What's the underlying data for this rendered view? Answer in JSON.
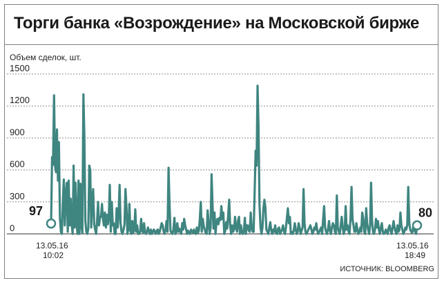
{
  "chart_data": {
    "type": "line",
    "title": "Торги банка «Возрождение» на Московской бирже",
    "ylabel": "Объем сделок, шт.",
    "source": "ИСТОЧНИК: BLOOMBERG",
    "ylim": [
      0,
      1500
    ],
    "yticks": [
      0,
      300,
      600,
      900,
      1200,
      1500
    ],
    "ytick_labels": [
      "0",
      "300",
      "600",
      "900",
      "1200",
      "1500"
    ],
    "grid": true,
    "x_start": {
      "date": "13.05.16",
      "time": "10:02"
    },
    "x_end": {
      "date": "13.05.16",
      "time": "18:49"
    },
    "start_value_label": "97",
    "end_value_label": "80",
    "series": [
      {
        "color": "#3f8580",
        "values": [
          97,
          720,
          650,
          1300,
          640,
          580,
          980,
          500,
          860,
          150,
          20,
          0,
          300,
          510,
          80,
          380,
          480,
          20,
          500,
          80,
          330,
          90,
          0,
          640,
          60,
          480,
          100,
          0,
          500,
          0,
          470,
          80,
          10,
          1310,
          900,
          120,
          20,
          0,
          50,
          640,
          600,
          60,
          300,
          420,
          90,
          40,
          0,
          120,
          300,
          80,
          160,
          160,
          280,
          140,
          80,
          200,
          60,
          180,
          90,
          160,
          460,
          20,
          300,
          80,
          100,
          0,
          0,
          240,
          60,
          200,
          460,
          100,
          20,
          0,
          40,
          90,
          420,
          260,
          0,
          50,
          280,
          30,
          0,
          120,
          10,
          40,
          230,
          20,
          80,
          0,
          0,
          20,
          140,
          30,
          10,
          100,
          20,
          0,
          20,
          60,
          20,
          0,
          40,
          0,
          20,
          40,
          20,
          0,
          30,
          40,
          0,
          20,
          60,
          100,
          80,
          20,
          0,
          40,
          120,
          20,
          620,
          280,
          30,
          10,
          0,
          40,
          150,
          0,
          20,
          100,
          20,
          50,
          20,
          0,
          100,
          40,
          140,
          80,
          40,
          0,
          30,
          10,
          0,
          40,
          20,
          10,
          40,
          10,
          0,
          60,
          10,
          30,
          140,
          300,
          20,
          140,
          70,
          40,
          10,
          0,
          220,
          100,
          0,
          60,
          560,
          270,
          50,
          200,
          0,
          110,
          140,
          90,
          150,
          130,
          260,
          140,
          200,
          0,
          30,
          110,
          50,
          180,
          320,
          80,
          0,
          80,
          20,
          40,
          160,
          60,
          20,
          120,
          160,
          0,
          80,
          20,
          0,
          30,
          150,
          0,
          80,
          80,
          30,
          20,
          200,
          60,
          20,
          20,
          400,
          780,
          640,
          1390,
          1000,
          280,
          60,
          0,
          60,
          240,
          320,
          250,
          40,
          20,
          0,
          60,
          110,
          30,
          0,
          40,
          20,
          80,
          10,
          0,
          50,
          60,
          0,
          20,
          40,
          80,
          20,
          0,
          60,
          150,
          240,
          100,
          160,
          0,
          20,
          0,
          30,
          100,
          40,
          0,
          20,
          100,
          60,
          0,
          30,
          60,
          420,
          100,
          20,
          0,
          20,
          40,
          60,
          80,
          40,
          0,
          20,
          60,
          40,
          100,
          30,
          0,
          20,
          40,
          60,
          0,
          140,
          260,
          60,
          20,
          0,
          40,
          120,
          30,
          0,
          60,
          100,
          80,
          20,
          0,
          360,
          60,
          20,
          0,
          80,
          160,
          60,
          0,
          30,
          260,
          40,
          80,
          20,
          0,
          140,
          440,
          140,
          80,
          20,
          20,
          100,
          40,
          0,
          20,
          60,
          20,
          200,
          140,
          20,
          0,
          240,
          100,
          40,
          0,
          80,
          480,
          120,
          20,
          0,
          40,
          140,
          60,
          120,
          40,
          0,
          60,
          100,
          20,
          0,
          10,
          40,
          20,
          0,
          60,
          80,
          30,
          0,
          60,
          120,
          60,
          20,
          0,
          80,
          20,
          40,
          200,
          80,
          40,
          0,
          20,
          60,
          40,
          80,
          440,
          100,
          40,
          20,
          10,
          60,
          40,
          20,
          0,
          80
        ]
      }
    ]
  }
}
